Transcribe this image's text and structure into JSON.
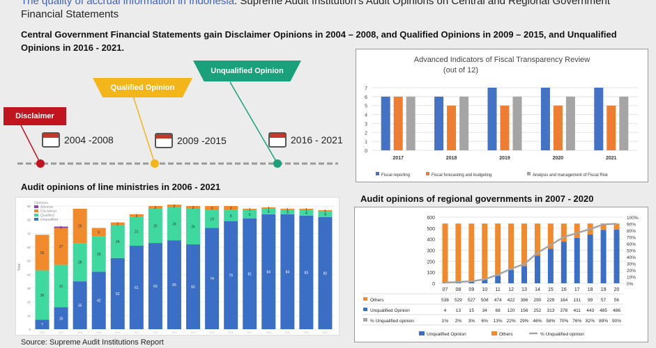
{
  "title": {
    "highlight": "The quality of accrual information in Indonesia",
    "rest": ": Supreme Audit Institution's Audit Opinions on Central and Regional Government Financial Statements"
  },
  "subtitle": "Central Government Financial Statements gain Disclaimer Opinions in 2004 – 2008, and Qualified Opinions in 2009 – 2015, and Unqualified Opinions in 2016 - 2021.",
  "timeline": {
    "flags": [
      {
        "label": "Disclaimer",
        "color": "#c0141e"
      },
      {
        "label": "Qualified Opinion",
        "color": "#f2b51a"
      },
      {
        "label": "Unqualified Opinion",
        "color": "#1aa07a"
      }
    ],
    "periods": [
      "2004 -2008",
      "2009 -2015",
      "2016 - 2021"
    ]
  },
  "ministries": {
    "heading": "Audit opinions of line ministries in 2006 - 2021",
    "legend": [
      "Adverse",
      "Disclaimer",
      "Qualified",
      "Unqualified"
    ],
    "colors": {
      "adverse": "#8e44ad",
      "disclaimer": "#f08a2c",
      "qualified": "#3fd9a0",
      "unqualified": "#3b6fc6"
    }
  },
  "fiscal": {
    "title_line1": "Advanced Indicators of Fiscal Transparency Review",
    "title_line2": "(out of 12)"
  },
  "regional": {
    "heading": "Audit opinions of regional governments in 2007 - 2020"
  },
  "source": "Source: Supreme Audit Institutions Report",
  "chart_data": [
    {
      "type": "bar",
      "title": "Advanced Indicators of Fiscal Transparency Review (out of 12)",
      "categories": [
        "2017",
        "2018",
        "2019",
        "2020",
        "2021"
      ],
      "ylim": [
        0,
        7
      ],
      "legend_position": "bottom",
      "series": [
        {
          "name": "Fiscal reporting",
          "color": "#4472c4",
          "values": [
            6,
            6,
            7,
            7,
            7
          ]
        },
        {
          "name": "Fiscal forecasting and budgeting",
          "color": "#ed7d31",
          "values": [
            6,
            5,
            5,
            5,
            5
          ]
        },
        {
          "name": "Analysis and management of Fiscal Risk",
          "color": "#a5a5a5",
          "values": [
            6,
            6,
            6,
            6,
            6
          ]
        }
      ]
    },
    {
      "type": "bar",
      "stacked": true,
      "title": "Audit opinions of line ministries in 2006 - 2021",
      "ylabel": "Total",
      "ylim": [
        0,
        90
      ],
      "yticks": [
        0,
        10,
        20,
        30,
        40,
        50,
        60,
        70,
        80,
        90
      ],
      "categories": [
        "2006",
        "2007",
        "2008",
        "2009",
        "2010",
        "2011",
        "2012",
        "2013",
        "2014",
        "2015",
        "2016",
        "2017",
        "2018",
        "2019",
        "2020",
        "2021"
      ],
      "series": [
        {
          "name": "Unqualified",
          "values": [
            7,
            16,
            35,
            42,
            52,
            61,
            63,
            65,
            62,
            74,
            79,
            81,
            84,
            84,
            83,
            82
          ]
        },
        {
          "name": "Qualified",
          "values": [
            36,
            31,
            28,
            26,
            24,
            21,
            25,
            24,
            26,
            13,
            8,
            6,
            4,
            3,
            4,
            4
          ]
        },
        {
          "name": "Disclaimer",
          "values": [
            26,
            27,
            25,
            6,
            2,
            2,
            2,
            2,
            2,
            3,
            3,
            1,
            1,
            1,
            1,
            1
          ]
        },
        {
          "name": "Adverse",
          "values": [
            0,
            1,
            0,
            0,
            0,
            0,
            0,
            0,
            0,
            0,
            0,
            0,
            0,
            0,
            0,
            0
          ]
        }
      ]
    },
    {
      "type": "bar",
      "stacked": true,
      "title": "Audit opinions of regional governments in 2007 - 2020",
      "ylim": [
        0,
        600
      ],
      "y2lim": [
        0,
        100
      ],
      "categories": [
        "07",
        "08",
        "09",
        "10",
        "11",
        "12",
        "13",
        "14",
        "15",
        "16",
        "17",
        "18",
        "19",
        "20"
      ],
      "series": [
        {
          "name": "Unqualified Opinion",
          "color": "#3b6fc6",
          "values": [
            4,
            13,
            15,
            34,
            68,
            120,
            156,
            252,
            313,
            378,
            411,
            443,
            485,
            486
          ]
        },
        {
          "name": "Others",
          "color": "#f08a2c",
          "values": [
            538,
            529,
            527,
            508,
            474,
            422,
            386,
            290,
            229,
            164,
            131,
            99,
            57,
            56
          ]
        },
        {
          "name": "% Unqualified opinion",
          "type": "line",
          "axis": "right",
          "color": "#a5a5a5",
          "values": [
            1,
            2,
            3,
            6,
            13,
            22,
            29,
            46,
            58,
            70,
            76,
            82,
            89,
            90
          ]
        }
      ],
      "table_labels": [
        "Others",
        "Unqualified Opinion",
        "% Unqualified opinion"
      ],
      "legend": [
        "Unqualified Opinion",
        "Others",
        "% Unqualified opinion"
      ]
    }
  ]
}
